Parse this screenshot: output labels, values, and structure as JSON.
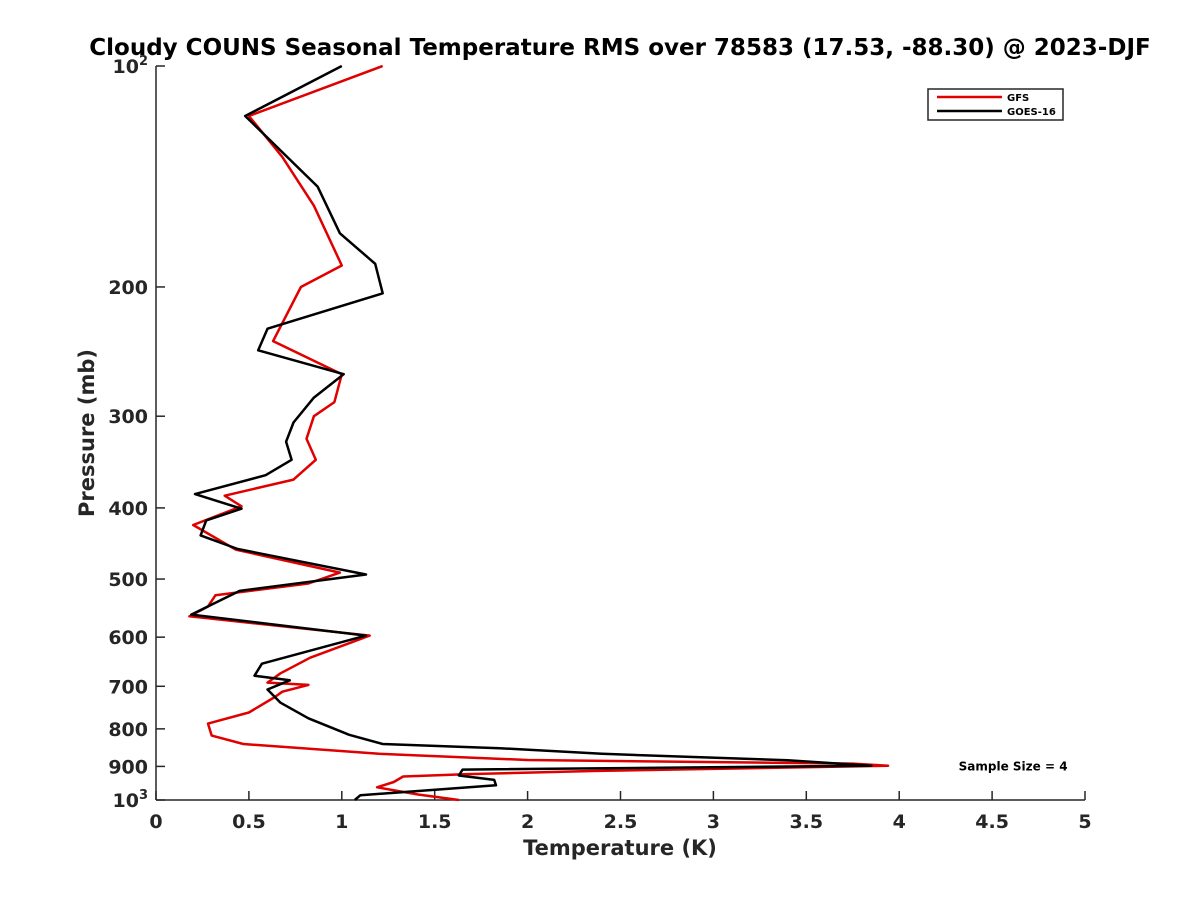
{
  "chart_data": {
    "type": "line",
    "title": "Cloudy COUNS Seasonal Temperature RMS over 78583 (17.53, -88.30) @ 2023-DJF",
    "xlabel": "Temperature (K)",
    "ylabel": "Pressure (mb)",
    "xlim": [
      0,
      5
    ],
    "ylim": [
      100,
      1000
    ],
    "y_scale": "log",
    "y_reversed": true,
    "grid": false,
    "legend_position": "top-right",
    "x_ticks": [
      {
        "value": 0,
        "label": "0"
      },
      {
        "value": 0.5,
        "label": "0.5"
      },
      {
        "value": 1,
        "label": "1"
      },
      {
        "value": 1.5,
        "label": "1.5"
      },
      {
        "value": 2,
        "label": "2"
      },
      {
        "value": 2.5,
        "label": "2.5"
      },
      {
        "value": 3,
        "label": "3"
      },
      {
        "value": 3.5,
        "label": "3.5"
      },
      {
        "value": 4,
        "label": "4"
      },
      {
        "value": 4.5,
        "label": "4.5"
      },
      {
        "value": 5,
        "label": "5"
      }
    ],
    "y_ticks": [
      {
        "value": 100,
        "label": "10",
        "sup": "2"
      },
      {
        "value": 200,
        "label": "200"
      },
      {
        "value": 300,
        "label": "300"
      },
      {
        "value": 400,
        "label": "400"
      },
      {
        "value": 500,
        "label": "500"
      },
      {
        "value": 600,
        "label": "600"
      },
      {
        "value": 700,
        "label": "700"
      },
      {
        "value": 800,
        "label": "800"
      },
      {
        "value": 900,
        "label": "900"
      },
      {
        "value": 1000,
        "label": "10",
        "sup": "3"
      }
    ],
    "series": [
      {
        "name": "GFS",
        "color": "#e00000",
        "points": [
          [
            1.22,
            100
          ],
          [
            0.5,
            117
          ],
          [
            0.68,
            133
          ],
          [
            0.85,
            155
          ],
          [
            1.0,
            187
          ],
          [
            0.78,
            200
          ],
          [
            0.63,
            237
          ],
          [
            1.0,
            263
          ],
          [
            0.96,
            287
          ],
          [
            0.85,
            300
          ],
          [
            0.81,
            322
          ],
          [
            0.86,
            344
          ],
          [
            0.74,
            366
          ],
          [
            0.37,
            385
          ],
          [
            0.46,
            398
          ],
          [
            0.2,
            422
          ],
          [
            0.43,
            456
          ],
          [
            0.99,
            490
          ],
          [
            0.82,
            507
          ],
          [
            0.32,
            526
          ],
          [
            0.28,
            545
          ],
          [
            0.18,
            562
          ],
          [
            1.15,
            597
          ],
          [
            0.83,
            640
          ],
          [
            0.67,
            672
          ],
          [
            0.6,
            692
          ],
          [
            0.82,
            697
          ],
          [
            0.68,
            712
          ],
          [
            0.64,
            724
          ],
          [
            0.5,
            760
          ],
          [
            0.28,
            787
          ],
          [
            0.3,
            817
          ],
          [
            0.47,
            839
          ],
          [
            1.2,
            865
          ],
          [
            2.0,
            882
          ],
          [
            3.75,
            892
          ],
          [
            3.94,
            898
          ],
          [
            2.35,
            913
          ],
          [
            1.68,
            922
          ],
          [
            1.33,
            929
          ],
          [
            1.28,
            945
          ],
          [
            1.19,
            961
          ],
          [
            1.41,
            983
          ],
          [
            1.63,
            1000
          ]
        ]
      },
      {
        "name": "GOES-16",
        "color": "#000000",
        "points": [
          [
            1.0,
            100
          ],
          [
            0.48,
            117
          ],
          [
            0.87,
            146
          ],
          [
            0.99,
            169
          ],
          [
            1.18,
            186
          ],
          [
            1.22,
            204
          ],
          [
            0.6,
            228
          ],
          [
            0.55,
            244
          ],
          [
            1.01,
            263
          ],
          [
            0.85,
            283
          ],
          [
            0.74,
            306
          ],
          [
            0.7,
            325
          ],
          [
            0.73,
            344
          ],
          [
            0.59,
            361
          ],
          [
            0.21,
            383
          ],
          [
            0.46,
            401
          ],
          [
            0.27,
            416
          ],
          [
            0.24,
            436
          ],
          [
            0.44,
            455
          ],
          [
            1.13,
            493
          ],
          [
            0.45,
            519
          ],
          [
            0.19,
            559
          ],
          [
            1.13,
            597
          ],
          [
            0.57,
            652
          ],
          [
            0.53,
            677
          ],
          [
            0.72,
            687
          ],
          [
            0.6,
            707
          ],
          [
            0.67,
            737
          ],
          [
            0.82,
            774
          ],
          [
            1.04,
            815
          ],
          [
            1.22,
            839
          ],
          [
            1.85,
            850
          ],
          [
            2.4,
            865
          ],
          [
            3.4,
            883
          ],
          [
            3.85,
            898
          ],
          [
            1.65,
            909
          ],
          [
            1.63,
            926
          ],
          [
            1.82,
            939
          ],
          [
            1.83,
            955
          ],
          [
            1.1,
            985
          ],
          [
            1.07,
            1000
          ]
        ]
      }
    ],
    "annotations": [
      {
        "text": "Sample Size = 4",
        "x": 4.32,
        "y": 900
      }
    ]
  }
}
